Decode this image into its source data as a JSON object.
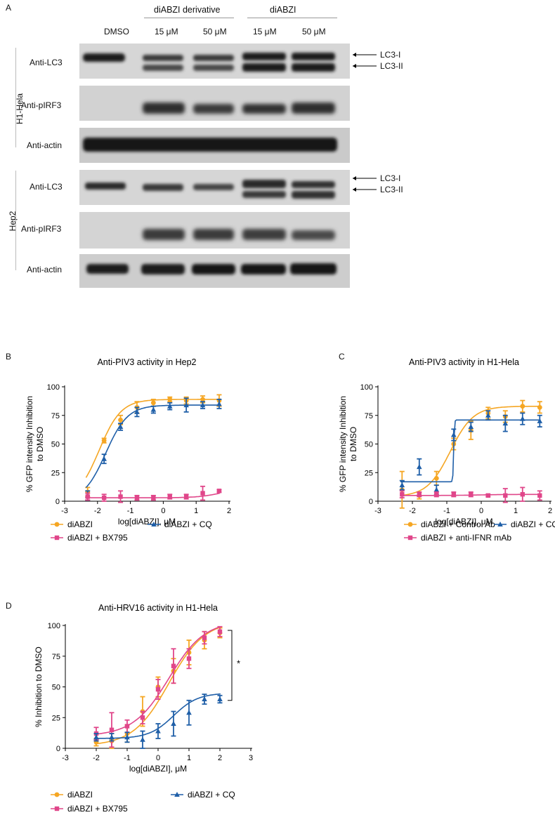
{
  "panelA": {
    "letter": "A",
    "group_derivative": "diABZI derivative",
    "group_diabzi": "diABZI",
    "lanes": [
      "DMSO",
      "15 μM",
      "50 μM",
      "15 μM",
      "50 μM"
    ],
    "cell_lines": [
      "H1-Hela",
      "Hep2"
    ],
    "rows": [
      "Anti-LC3",
      "Anti-pIRF3",
      "Anti-actin"
    ],
    "lc3_i": "LC3-I",
    "lc3_ii": "LC3-II"
  },
  "panelB": {
    "letter": "B"
  },
  "panelC": {
    "letter": "C"
  },
  "panelD": {
    "letter": "D",
    "significance": "*"
  },
  "chart_data": [
    {
      "type": "scatter",
      "title": "Anti-PIV3 activity in Hep2",
      "xlabel": "log[diABZI], μM",
      "ylabel": "% GFP intensity Inhibition to DMSO",
      "xlim": [
        -3,
        2
      ],
      "ylim": [
        0,
        100
      ],
      "xticks": [
        -3,
        -2,
        -1,
        0,
        1,
        2
      ],
      "yticks": [
        0,
        25,
        50,
        75,
        100
      ],
      "series": [
        {
          "name": "diABZI",
          "color": "#F5A623",
          "marker": "circle",
          "x": [
            -2.3,
            -1.8,
            -1.3,
            -0.8,
            -0.3,
            0.2,
            0.7,
            1.2,
            1.7
          ],
          "y": [
            8,
            53,
            71,
            82,
            86,
            89,
            88,
            89,
            88
          ],
          "err": [
            4,
            2,
            4,
            5,
            3,
            2,
            3,
            3,
            5
          ]
        },
        {
          "name": "diABZI + CQ",
          "color": "#1F5FA8",
          "marker": "triangle",
          "x": [
            -2.3,
            -1.8,
            -1.3,
            -0.8,
            -0.3,
            0.2,
            0.7,
            1.2,
            1.7
          ],
          "y": [
            5,
            37,
            65,
            78,
            80,
            83,
            84,
            84,
            85
          ],
          "err": [
            4,
            4,
            3,
            4,
            3,
            3,
            6,
            3,
            4
          ]
        },
        {
          "name": "diABZI + BX795",
          "color": "#E0468A",
          "marker": "square",
          "x": [
            -2.3,
            -1.8,
            -1.3,
            -0.8,
            -0.3,
            0.2,
            0.7,
            1.2,
            1.7
          ],
          "y": [
            4,
            3,
            4,
            3,
            3,
            4,
            4,
            7,
            9
          ],
          "err": [
            3,
            3,
            5,
            2,
            2,
            2,
            2,
            6,
            1
          ]
        }
      ],
      "legend": "bottom"
    },
    {
      "type": "scatter",
      "title": "Anti-PIV3 activity in H1-Hela",
      "xlabel": "log[diABZI], μM",
      "ylabel": "% GFP intensity Inhibition to DMSO",
      "xlim": [
        -3,
        2
      ],
      "ylim": [
        0,
        100
      ],
      "xticks": [
        -3,
        -2,
        -1,
        0,
        1,
        2
      ],
      "yticks": [
        0,
        25,
        50,
        75,
        100
      ],
      "series": [
        {
          "name": "diABZI + Control Ab",
          "color": "#F5A623",
          "marker": "circle",
          "x": [
            -2.3,
            -1.8,
            -1.3,
            -0.8,
            -0.3,
            0.2,
            0.7,
            1.2,
            1.7
          ],
          "y": [
            10,
            5,
            20,
            50,
            62,
            77,
            74,
            83,
            82
          ],
          "err": [
            16,
            3,
            6,
            5,
            8,
            5,
            5,
            5,
            5
          ]
        },
        {
          "name": "diABZI + CQ",
          "color": "#1F5FA8",
          "marker": "triangle",
          "x": [
            -2.3,
            -1.8,
            -1.3,
            -0.8,
            -0.3,
            0.2,
            0.7,
            1.2,
            1.7
          ],
          "y": [
            14,
            30,
            10,
            58,
            65,
            75,
            68,
            72,
            70
          ],
          "err": [
            4,
            7,
            4,
            5,
            4,
            4,
            7,
            5,
            5
          ]
        },
        {
          "name": "diABZI + anti-IFNR mAb",
          "color": "#E0468A",
          "marker": "square",
          "x": [
            -2.3,
            -1.8,
            -1.3,
            -0.8,
            -0.3,
            0.2,
            0.7,
            1.2,
            1.7
          ],
          "y": [
            6,
            6,
            6,
            6,
            6,
            5,
            5,
            6,
            5
          ],
          "err": [
            3,
            2,
            2,
            2,
            2,
            1,
            6,
            6,
            4
          ]
        }
      ],
      "legend": "bottom"
    },
    {
      "type": "scatter",
      "title": "Anti-HRV16 activity in H1-Hela",
      "xlabel": "log[diABZI], μM",
      "ylabel": "% Inhibition to DMSO",
      "xlim": [
        -3,
        3
      ],
      "ylim": [
        0,
        100
      ],
      "xticks": [
        -3,
        -2,
        -1,
        0,
        1,
        2,
        3
      ],
      "yticks": [
        0,
        25,
        50,
        75,
        100
      ],
      "series": [
        {
          "name": "diABZI",
          "color": "#F5A623",
          "marker": "circle",
          "x": [
            -2,
            -1.5,
            -1,
            -0.5,
            0,
            0.5,
            1,
            1.5,
            2
          ],
          "y": [
            5,
            6,
            12,
            30,
            50,
            63,
            78,
            88,
            94
          ],
          "err": [
            3,
            6,
            7,
            12,
            8,
            10,
            10,
            7,
            4
          ]
        },
        {
          "name": "diABZI + BX795",
          "color": "#E0468A",
          "marker": "square",
          "x": [
            -2,
            -1.5,
            -1,
            -0.5,
            0,
            0.5,
            1,
            1.5,
            2
          ],
          "y": [
            12,
            15,
            18,
            25,
            48,
            67,
            73,
            90,
            95
          ],
          "err": [
            5,
            14,
            5,
            5,
            8,
            14,
            8,
            5,
            4
          ]
        },
        {
          "name": "diABZI + CQ",
          "color": "#1F5FA8",
          "marker": "triangle",
          "x": [
            -2,
            -1.5,
            -1,
            -0.5,
            0,
            0.5,
            1,
            1.5,
            2
          ],
          "y": [
            9,
            9,
            9,
            7,
            14,
            20,
            29,
            40,
            40
          ],
          "err": [
            3,
            3,
            4,
            7,
            6,
            10,
            10,
            4,
            3
          ]
        }
      ],
      "legend": "bottom"
    }
  ]
}
